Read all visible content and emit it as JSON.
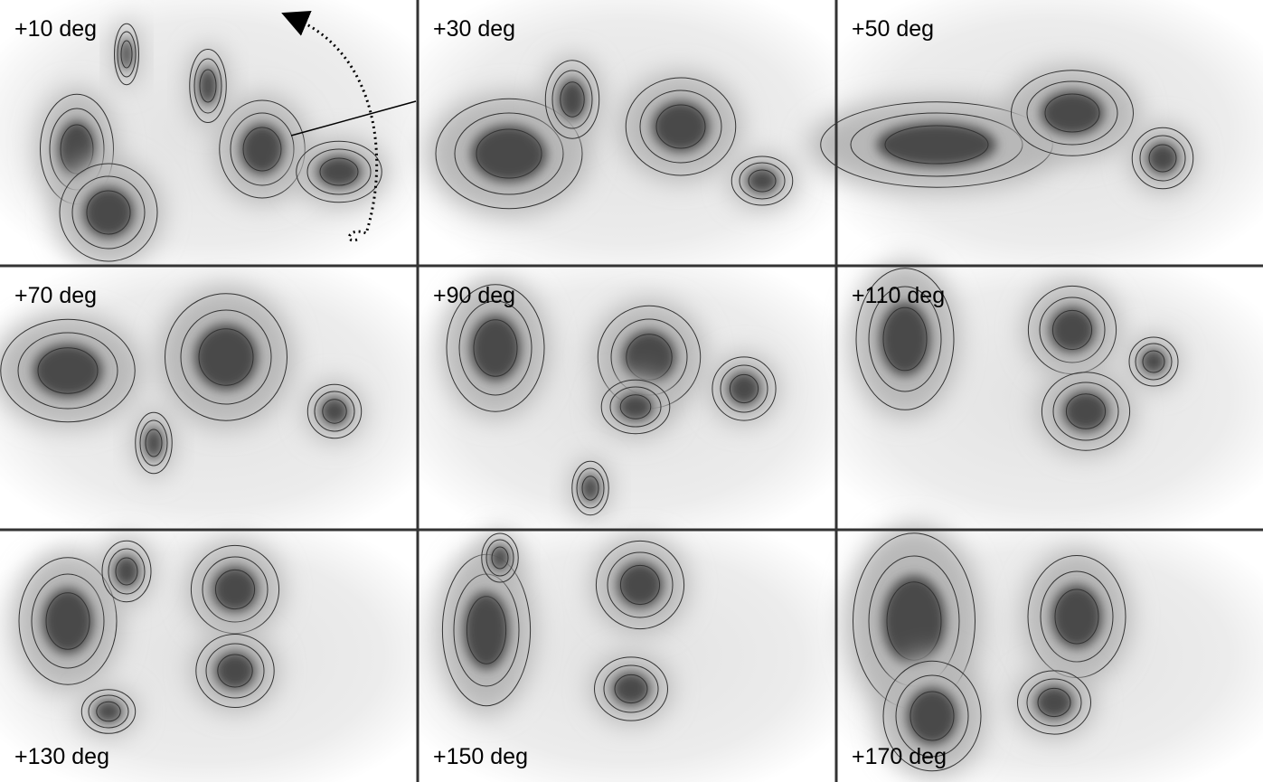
{
  "panels": [
    {
      "label": "+10 deg"
    },
    {
      "label": "+30 deg"
    },
    {
      "label": "+50 deg"
    },
    {
      "label": "+70 deg"
    },
    {
      "label": "+90 deg"
    },
    {
      "label": "+110 deg"
    },
    {
      "label": "+130 deg"
    },
    {
      "label": "+150 deg"
    },
    {
      "label": "+170 deg"
    }
  ]
}
